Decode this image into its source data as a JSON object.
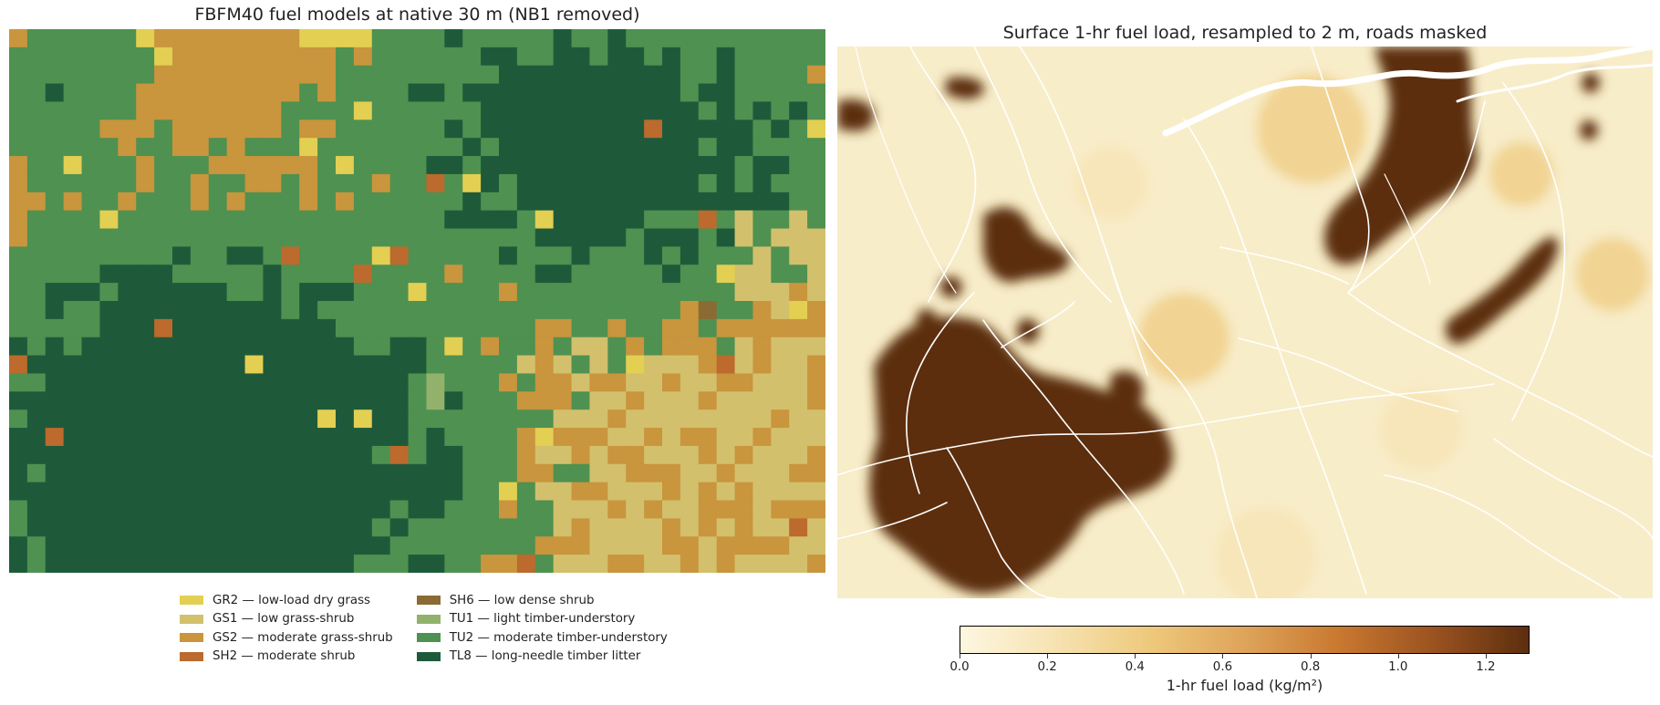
{
  "left_panel": {
    "title": "FBFM40 fuel models at native 30 m (NB1 removed)",
    "legend": [
      {
        "code": "GR2",
        "label": "GR2 — low-load dry grass",
        "color": "#e3cf52"
      },
      {
        "code": "GS1",
        "label": "GS1 — low grass-shrub",
        "color": "#d3c06c"
      },
      {
        "code": "GS2",
        "label": "GS2 — moderate grass-shrub",
        "color": "#c9953d"
      },
      {
        "code": "SH2",
        "label": "SH2 — moderate shrub",
        "color": "#bc6a2d"
      },
      {
        "code": "SH6",
        "label": "SH6 — low dense shrub",
        "color": "#8b6b33"
      },
      {
        "code": "TU1",
        "label": "TU1 — light timber-understory",
        "color": "#92b26b"
      },
      {
        "code": "TU2",
        "label": "TU2 — moderate timber-understory",
        "color": "#4f9150"
      },
      {
        "code": "TL8",
        "label": "TL8 — long-needle timber litter",
        "color": "#1e5a3a"
      }
    ]
  },
  "right_panel": {
    "title": "Surface 1-hr fuel load, resampled to 2 m, roads masked",
    "colorbar": {
      "label": "1-hr fuel load (kg/m²)",
      "min": 0.0,
      "max": 1.3,
      "ticks": [
        "0.0",
        "0.2",
        "0.4",
        "0.6",
        "0.8",
        "1.0",
        "1.2"
      ],
      "colors": [
        "#fdf7e0",
        "#f6e3b2",
        "#eec97c",
        "#dea45a",
        "#c9782f",
        "#9a5220",
        "#5c2e0e"
      ]
    },
    "road_color": "#ffffff"
  }
}
